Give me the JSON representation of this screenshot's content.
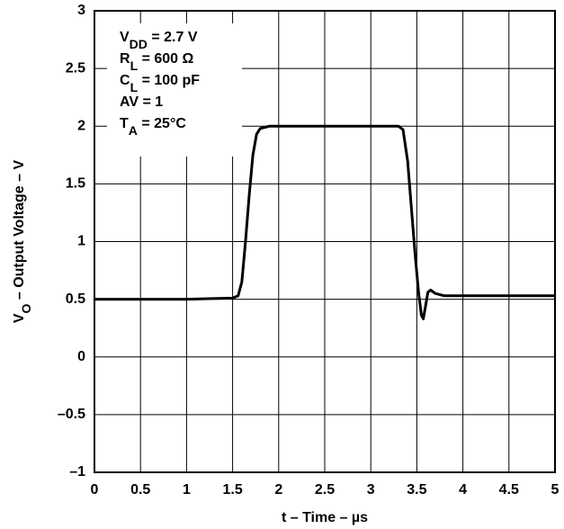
{
  "chart_data": {
    "type": "line",
    "ylabel": [
      "V",
      "O",
      " – Output Voltage – V"
    ],
    "xlabel": "t – Time – µs",
    "annotations": [
      [
        "V",
        "DD",
        " = 2.7 V"
      ],
      [
        "R",
        "L",
        " = 600 Ω"
      ],
      [
        "C",
        "L",
        " = 100 pF"
      ],
      [
        "AV = 1"
      ],
      [
        "T",
        "A",
        " = 25°C"
      ]
    ],
    "xlim": [
      0,
      5
    ],
    "xticks": [
      0,
      0.5,
      1,
      1.5,
      2,
      2.5,
      3,
      3.5,
      4,
      4.5,
      5
    ],
    "ylim": [
      -1,
      3
    ],
    "yticks": [
      {
        "value": -1,
        "label": "–1"
      },
      {
        "value": -0.5,
        "label": "–0.5"
      },
      0,
      0.5,
      1,
      1.5,
      2,
      2.5,
      3
    ],
    "grid": true,
    "series": [
      {
        "color": "#000000",
        "x": [
          0,
          1.0,
          1.5,
          1.56,
          1.6,
          1.64,
          1.68,
          1.72,
          1.76,
          1.8,
          1.9,
          2.5,
          3.3,
          3.35,
          3.4,
          3.44,
          3.48,
          3.52,
          3.55,
          3.57,
          3.59,
          3.62,
          3.65,
          3.7,
          3.8,
          4.5,
          5
        ],
        "values": [
          0.5,
          0.5,
          0.51,
          0.53,
          0.65,
          1.0,
          1.4,
          1.75,
          1.93,
          1.98,
          2.0,
          2.0,
          2.0,
          1.97,
          1.7,
          1.3,
          0.9,
          0.55,
          0.36,
          0.33,
          0.42,
          0.56,
          0.58,
          0.55,
          0.53,
          0.53,
          0.53
        ]
      }
    ]
  }
}
